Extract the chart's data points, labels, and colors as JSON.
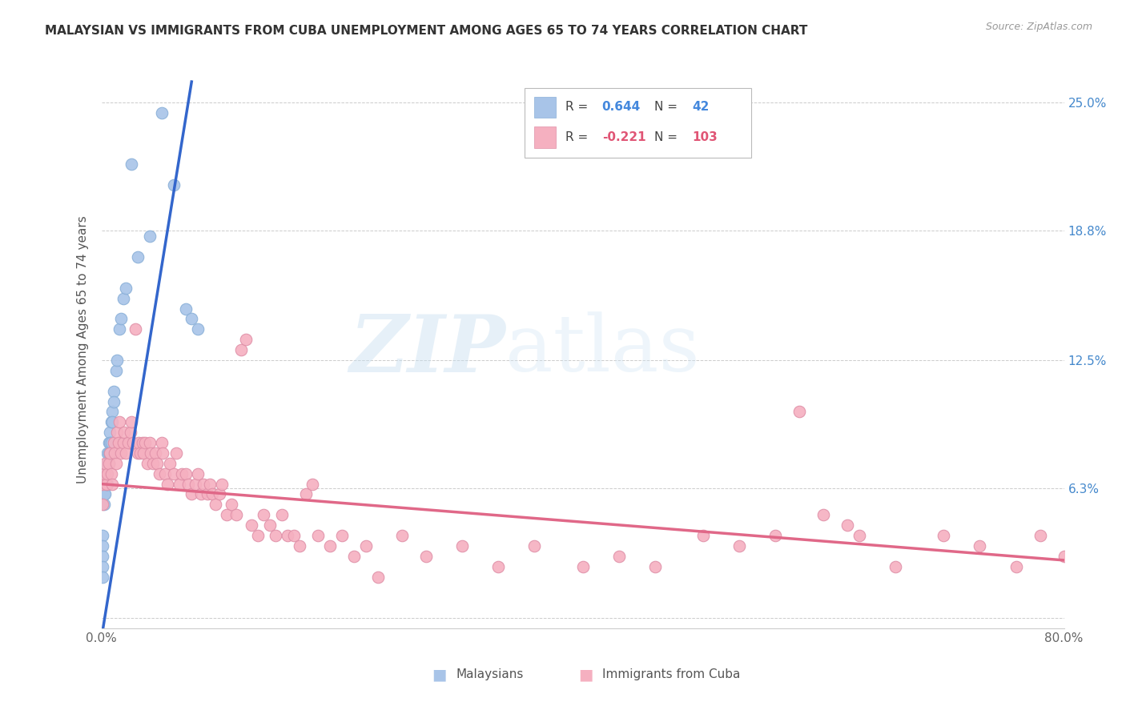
{
  "title": "MALAYSIAN VS IMMIGRANTS FROM CUBA UNEMPLOYMENT AMONG AGES 65 TO 74 YEARS CORRELATION CHART",
  "source": "Source: ZipAtlas.com",
  "ylabel": "Unemployment Among Ages 65 to 74 years",
  "xlim": [
    0.0,
    0.8
  ],
  "ylim": [
    -0.005,
    0.265
  ],
  "xticks": [
    0.0,
    0.1,
    0.2,
    0.3,
    0.4,
    0.5,
    0.6,
    0.7,
    0.8
  ],
  "xticklabels": [
    "0.0%",
    "",
    "",
    "",
    "",
    "",
    "",
    "",
    "80.0%"
  ],
  "ytick_positions": [
    0.0,
    0.063,
    0.125,
    0.188,
    0.25
  ],
  "ytick_labels_right": [
    "",
    "6.3%",
    "12.5%",
    "18.8%",
    "25.0%"
  ],
  "blue_color": "#a8c4e8",
  "pink_color": "#f5b0c0",
  "blue_line_color": "#3366cc",
  "pink_line_color": "#e06888",
  "watermark_zip": "ZIP",
  "watermark_atlas": "atlas",
  "blue_points_x": [
    0.001,
    0.001,
    0.001,
    0.001,
    0.001,
    0.002,
    0.002,
    0.003,
    0.003,
    0.003,
    0.004,
    0.004,
    0.004,
    0.005,
    0.005,
    0.005,
    0.006,
    0.006,
    0.006,
    0.007,
    0.007,
    0.007,
    0.008,
    0.008,
    0.009,
    0.009,
    0.01,
    0.01,
    0.012,
    0.013,
    0.015,
    0.016,
    0.018,
    0.02,
    0.025,
    0.03,
    0.04,
    0.05,
    0.06,
    0.07,
    0.075,
    0.08
  ],
  "blue_points_y": [
    0.04,
    0.035,
    0.03,
    0.025,
    0.02,
    0.06,
    0.055,
    0.07,
    0.065,
    0.06,
    0.075,
    0.07,
    0.065,
    0.08,
    0.075,
    0.065,
    0.085,
    0.08,
    0.075,
    0.09,
    0.085,
    0.08,
    0.095,
    0.085,
    0.1,
    0.095,
    0.11,
    0.105,
    0.12,
    0.125,
    0.14,
    0.145,
    0.155,
    0.16,
    0.22,
    0.175,
    0.185,
    0.245,
    0.21,
    0.15,
    0.145,
    0.14
  ],
  "pink_points_x": [
    0.001,
    0.001,
    0.002,
    0.003,
    0.004,
    0.005,
    0.006,
    0.007,
    0.008,
    0.009,
    0.01,
    0.011,
    0.012,
    0.013,
    0.014,
    0.015,
    0.016,
    0.018,
    0.019,
    0.02,
    0.022,
    0.024,
    0.025,
    0.026,
    0.028,
    0.03,
    0.031,
    0.032,
    0.034,
    0.035,
    0.036,
    0.038,
    0.04,
    0.041,
    0.043,
    0.045,
    0.046,
    0.048,
    0.05,
    0.051,
    0.053,
    0.055,
    0.057,
    0.06,
    0.062,
    0.065,
    0.067,
    0.07,
    0.072,
    0.075,
    0.078,
    0.08,
    0.083,
    0.085,
    0.088,
    0.09,
    0.092,
    0.095,
    0.098,
    0.1,
    0.104,
    0.108,
    0.112,
    0.116,
    0.12,
    0.125,
    0.13,
    0.135,
    0.14,
    0.145,
    0.15,
    0.155,
    0.16,
    0.165,
    0.17,
    0.175,
    0.18,
    0.19,
    0.2,
    0.21,
    0.22,
    0.23,
    0.25,
    0.27,
    0.3,
    0.33,
    0.36,
    0.4,
    0.43,
    0.46,
    0.5,
    0.53,
    0.56,
    0.6,
    0.63,
    0.66,
    0.7,
    0.73,
    0.76,
    0.78,
    0.8,
    0.58,
    0.62
  ],
  "pink_points_y": [
    0.065,
    0.055,
    0.07,
    0.075,
    0.065,
    0.07,
    0.075,
    0.08,
    0.07,
    0.065,
    0.085,
    0.08,
    0.075,
    0.09,
    0.085,
    0.095,
    0.08,
    0.085,
    0.09,
    0.08,
    0.085,
    0.09,
    0.095,
    0.085,
    0.14,
    0.08,
    0.085,
    0.08,
    0.085,
    0.08,
    0.085,
    0.075,
    0.085,
    0.08,
    0.075,
    0.08,
    0.075,
    0.07,
    0.085,
    0.08,
    0.07,
    0.065,
    0.075,
    0.07,
    0.08,
    0.065,
    0.07,
    0.07,
    0.065,
    0.06,
    0.065,
    0.07,
    0.06,
    0.065,
    0.06,
    0.065,
    0.06,
    0.055,
    0.06,
    0.065,
    0.05,
    0.055,
    0.05,
    0.13,
    0.135,
    0.045,
    0.04,
    0.05,
    0.045,
    0.04,
    0.05,
    0.04,
    0.04,
    0.035,
    0.06,
    0.065,
    0.04,
    0.035,
    0.04,
    0.03,
    0.035,
    0.02,
    0.04,
    0.03,
    0.035,
    0.025,
    0.035,
    0.025,
    0.03,
    0.025,
    0.04,
    0.035,
    0.04,
    0.05,
    0.04,
    0.025,
    0.04,
    0.035,
    0.025,
    0.04,
    0.03,
    0.1,
    0.045
  ]
}
